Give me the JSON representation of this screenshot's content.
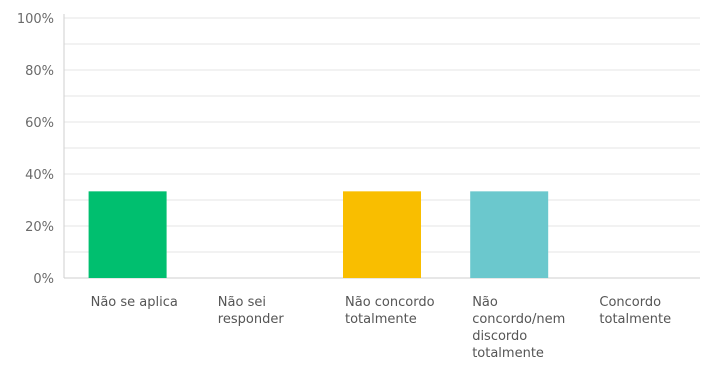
{
  "chart_data": {
    "type": "bar",
    "categories": [
      "Não se aplica",
      "Não sei responder",
      "Não concordo totalmente",
      "Não concordo/nem discordo totalmente",
      "Concordo totalmente"
    ],
    "category_label_lines": [
      [
        "Não se aplica"
      ],
      [
        "Não sei",
        "responder"
      ],
      [
        "Não concordo",
        "totalmente"
      ],
      [
        "Não",
        "concordo/nem",
        "discordo",
        "totalmente"
      ],
      [
        "Concordo",
        "totalmente"
      ]
    ],
    "values": [
      33.33,
      0,
      33.33,
      33.33,
      0
    ],
    "colors": [
      "#00bf6f",
      "#00bf6f",
      "#f9be00",
      "#6bc8cd",
      "#6bc8cd"
    ],
    "ylim": [
      0,
      100
    ],
    "yticks": [
      0,
      20,
      40,
      60,
      80,
      100
    ],
    "ytick_labels": [
      "0%",
      "20%",
      "40%",
      "60%",
      "80%",
      "100%"
    ],
    "grid": true,
    "title": "",
    "xlabel": "",
    "ylabel": ""
  }
}
